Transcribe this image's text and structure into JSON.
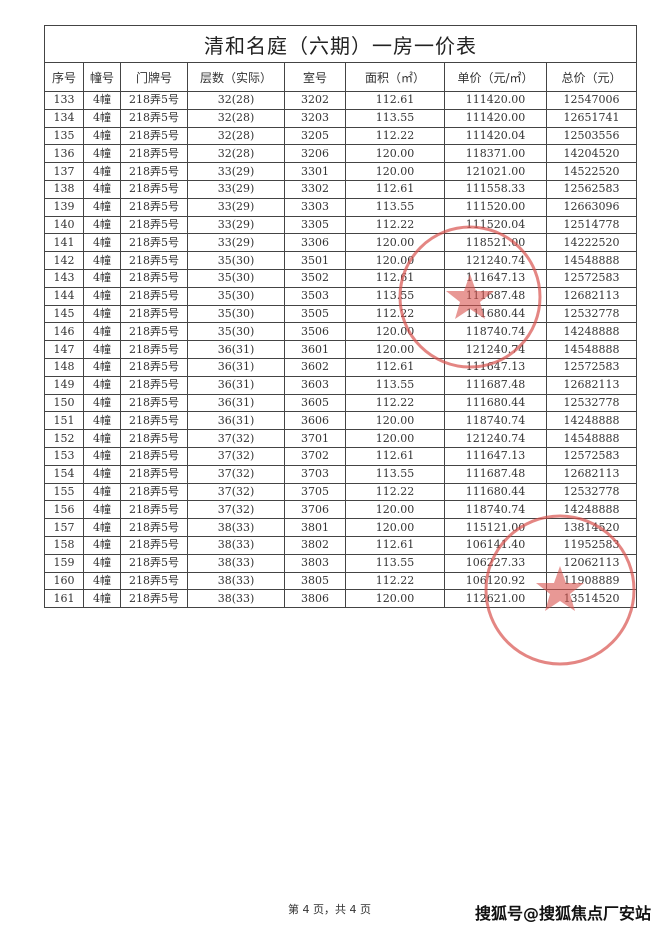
{
  "document": {
    "title": "清和名庭（六期）一房一价表",
    "columns": [
      "序号",
      "幢号",
      "门牌号",
      "层数（实际）",
      "室号",
      "面积（㎡）",
      "单价（元/㎡）",
      "总价（元）"
    ],
    "rows": [
      [
        "133",
        "4幢",
        "218弄5号",
        "32(28)",
        "3202",
        "112.61",
        "111420.00",
        "12547006"
      ],
      [
        "134",
        "4幢",
        "218弄5号",
        "32(28)",
        "3203",
        "113.55",
        "111420.00",
        "12651741"
      ],
      [
        "135",
        "4幢",
        "218弄5号",
        "32(28)",
        "3205",
        "112.22",
        "111420.04",
        "12503556"
      ],
      [
        "136",
        "4幢",
        "218弄5号",
        "32(28)",
        "3206",
        "120.00",
        "118371.00",
        "14204520"
      ],
      [
        "137",
        "4幢",
        "218弄5号",
        "33(29)",
        "3301",
        "120.00",
        "121021.00",
        "14522520"
      ],
      [
        "138",
        "4幢",
        "218弄5号",
        "33(29)",
        "3302",
        "112.61",
        "111558.33",
        "12562583"
      ],
      [
        "139",
        "4幢",
        "218弄5号",
        "33(29)",
        "3303",
        "113.55",
        "111520.00",
        "12663096"
      ],
      [
        "140",
        "4幢",
        "218弄5号",
        "33(29)",
        "3305",
        "112.22",
        "111520.04",
        "12514778"
      ],
      [
        "141",
        "4幢",
        "218弄5号",
        "33(29)",
        "3306",
        "120.00",
        "118521.00",
        "14222520"
      ],
      [
        "142",
        "4幢",
        "218弄5号",
        "35(30)",
        "3501",
        "120.00",
        "121240.74",
        "14548888"
      ],
      [
        "143",
        "4幢",
        "218弄5号",
        "35(30)",
        "3502",
        "112.61",
        "111647.13",
        "12572583"
      ],
      [
        "144",
        "4幢",
        "218弄5号",
        "35(30)",
        "3503",
        "113.55",
        "111687.48",
        "12682113"
      ],
      [
        "145",
        "4幢",
        "218弄5号",
        "35(30)",
        "3505",
        "112.22",
        "111680.44",
        "12532778"
      ],
      [
        "146",
        "4幢",
        "218弄5号",
        "35(30)",
        "3506",
        "120.00",
        "118740.74",
        "14248888"
      ],
      [
        "147",
        "4幢",
        "218弄5号",
        "36(31)",
        "3601",
        "120.00",
        "121240.74",
        "14548888"
      ],
      [
        "148",
        "4幢",
        "218弄5号",
        "36(31)",
        "3602",
        "112.61",
        "111647.13",
        "12572583"
      ],
      [
        "149",
        "4幢",
        "218弄5号",
        "36(31)",
        "3603",
        "113.55",
        "111687.48",
        "12682113"
      ],
      [
        "150",
        "4幢",
        "218弄5号",
        "36(31)",
        "3605",
        "112.22",
        "111680.44",
        "12532778"
      ],
      [
        "151",
        "4幢",
        "218弄5号",
        "36(31)",
        "3606",
        "120.00",
        "118740.74",
        "14248888"
      ],
      [
        "152",
        "4幢",
        "218弄5号",
        "37(32)",
        "3701",
        "120.00",
        "121240.74",
        "14548888"
      ],
      [
        "153",
        "4幢",
        "218弄5号",
        "37(32)",
        "3702",
        "112.61",
        "111647.13",
        "12572583"
      ],
      [
        "154",
        "4幢",
        "218弄5号",
        "37(32)",
        "3703",
        "113.55",
        "111687.48",
        "12682113"
      ],
      [
        "155",
        "4幢",
        "218弄5号",
        "37(32)",
        "3705",
        "112.22",
        "111680.44",
        "12532778"
      ],
      [
        "156",
        "4幢",
        "218弄5号",
        "37(32)",
        "3706",
        "120.00",
        "118740.74",
        "14248888"
      ],
      [
        "157",
        "4幢",
        "218弄5号",
        "38(33)",
        "3801",
        "120.00",
        "115121.00",
        "13814520"
      ],
      [
        "158",
        "4幢",
        "218弄5号",
        "38(33)",
        "3802",
        "112.61",
        "106141.40",
        "11952583"
      ],
      [
        "159",
        "4幢",
        "218弄5号",
        "38(33)",
        "3803",
        "113.55",
        "106227.33",
        "12062113"
      ],
      [
        "160",
        "4幢",
        "218弄5号",
        "38(33)",
        "3805",
        "112.22",
        "106120.92",
        "11908889"
      ],
      [
        "161",
        "4幢",
        "218弄5号",
        "38(33)",
        "3806",
        "120.00",
        "112621.00",
        "13514520"
      ]
    ],
    "footer": "第 4 页，共 4 页",
    "watermark": "搜狐号@搜狐焦点厂安站",
    "stamp_color": "#d9534f"
  }
}
